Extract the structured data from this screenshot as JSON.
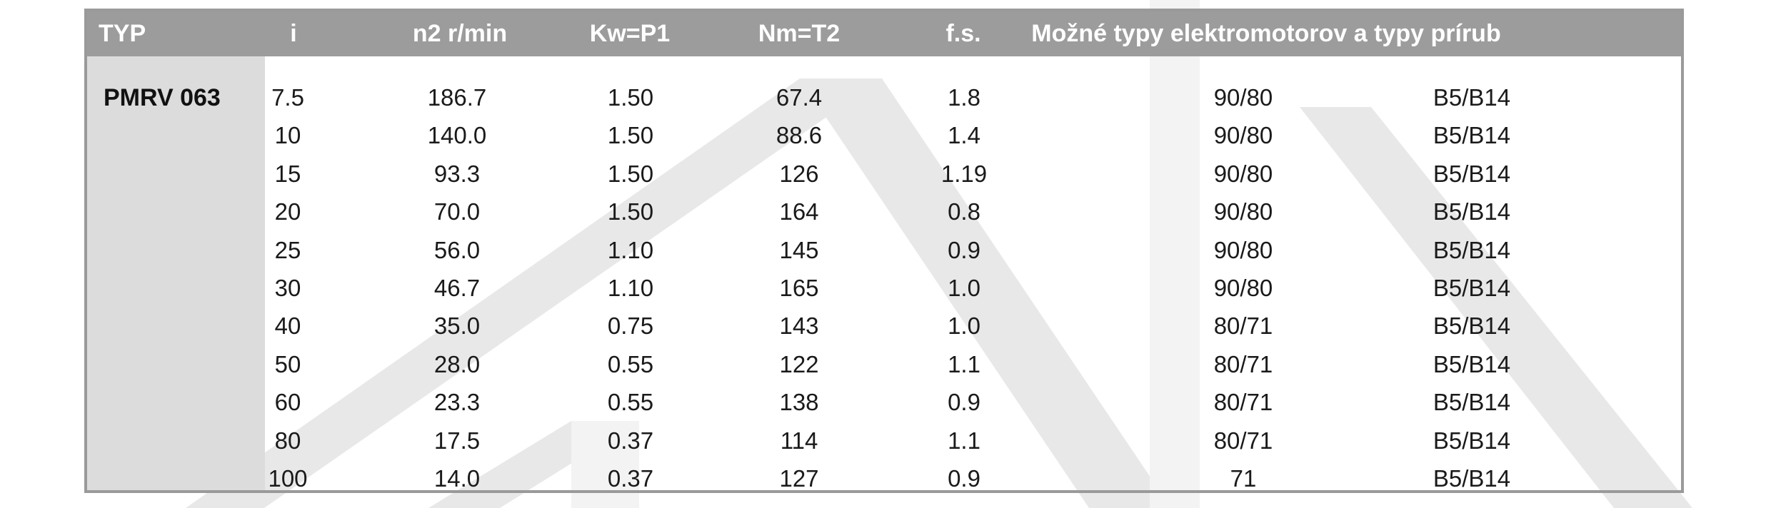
{
  "table": {
    "headers": {
      "typ": "TYP",
      "i": "i",
      "n2": "n2 r/min",
      "kw": "Kw=P1",
      "nm": "Nm=T2",
      "fs": "f.s.",
      "motor": "Možné typy elektromotorov a typy prírub"
    },
    "type_name": "PMRV 063",
    "rows": [
      {
        "i": "7.5",
        "n2": "186.7",
        "kw": "1.50",
        "nm": "67.4",
        "fs": "1.8",
        "motor": "90/80",
        "flange": "B5/B14"
      },
      {
        "i": "10",
        "n2": "140.0",
        "kw": "1.50",
        "nm": "88.6",
        "fs": "1.4",
        "motor": "90/80",
        "flange": "B5/B14"
      },
      {
        "i": "15",
        "n2": "93.3",
        "kw": "1.50",
        "nm": "126",
        "fs": "1.19",
        "motor": "90/80",
        "flange": "B5/B14"
      },
      {
        "i": "20",
        "n2": "70.0",
        "kw": "1.50",
        "nm": "164",
        "fs": "0.8",
        "motor": "90/80",
        "flange": "B5/B14"
      },
      {
        "i": "25",
        "n2": "56.0",
        "kw": "1.10",
        "nm": "145",
        "fs": "0.9",
        "motor": "90/80",
        "flange": "B5/B14"
      },
      {
        "i": "30",
        "n2": "46.7",
        "kw": "1.10",
        "nm": "165",
        "fs": "1.0",
        "motor": "90/80",
        "flange": "B5/B14"
      },
      {
        "i": "40",
        "n2": "35.0",
        "kw": "0.75",
        "nm": "143",
        "fs": "1.0",
        "motor": "80/71",
        "flange": "B5/B14"
      },
      {
        "i": "50",
        "n2": "28.0",
        "kw": "0.55",
        "nm": "122",
        "fs": "1.1",
        "motor": "80/71",
        "flange": "B5/B14"
      },
      {
        "i": "60",
        "n2": "23.3",
        "kw": "0.55",
        "nm": "138",
        "fs": "0.9",
        "motor": "80/71",
        "flange": "B5/B14"
      },
      {
        "i": "80",
        "n2": "17.5",
        "kw": "0.37",
        "nm": "114",
        "fs": "1.1",
        "motor": "80/71",
        "flange": "B5/B14"
      },
      {
        "i": "100",
        "n2": "14.0",
        "kw": "0.37",
        "nm": "127",
        "fs": "0.9",
        "motor": "71",
        "flange": "B5/B14"
      }
    ]
  },
  "colors": {
    "header_bg": "#9c9c9c",
    "typ_column_bg": "#dcdcdc",
    "border": "#9a9a9a",
    "watermark": "#e6e6e6"
  }
}
